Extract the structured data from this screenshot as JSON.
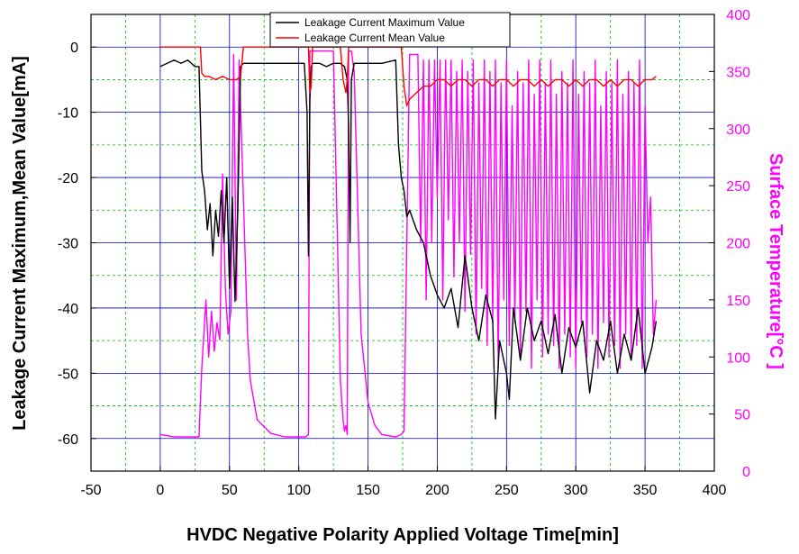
{
  "chart_data": {
    "type": "line",
    "xlabel": "HVDC Negative Polarity Applied Voltage Time[min]",
    "ylabel": "Leakage Current Maximum,Mean Value[mA]",
    "y2label": "Surface Temperature[°C ]",
    "xlim": [
      -50,
      400
    ],
    "ylim": [
      -65,
      5
    ],
    "y2lim": [
      0,
      400
    ],
    "xticks": [
      -50,
      0,
      50,
      100,
      150,
      200,
      250,
      300,
      350,
      400
    ],
    "yticks": [
      0,
      -10,
      -20,
      -30,
      -40,
      -50,
      -60
    ],
    "y2ticks": [
      0,
      50,
      100,
      150,
      200,
      250,
      300,
      350,
      400
    ],
    "grid": true,
    "legend_position": "top-center",
    "colors": {
      "max": "#000000",
      "mean": "#ff0000",
      "temp": "#ff00ff",
      "grid_major": "#0000cc",
      "grid_minor": "#00bb00"
    },
    "series": [
      {
        "name": "Leakage Current Maximum Value",
        "axis": "left",
        "x": [
          0,
          5,
          10,
          15,
          20,
          25,
          28,
          30,
          32,
          34,
          36,
          38,
          40,
          42,
          44,
          46,
          48,
          50,
          52,
          54,
          56,
          58,
          60,
          62,
          70,
          80,
          90,
          100,
          104,
          106,
          107,
          108,
          109,
          110,
          115,
          120,
          125,
          130,
          133,
          135,
          136,
          137,
          138,
          140,
          150,
          160,
          170,
          172,
          174,
          176,
          178,
          180,
          185,
          190,
          195,
          200,
          205,
          210,
          215,
          220,
          225,
          230,
          235,
          240,
          242,
          245,
          250,
          252,
          255,
          260,
          265,
          270,
          275,
          280,
          285,
          290,
          295,
          300,
          305,
          310,
          315,
          320,
          325,
          330,
          335,
          340,
          345,
          350,
          355,
          358
        ],
        "y": [
          -3,
          -2.5,
          -2,
          -2.5,
          -2,
          -3,
          -3,
          -19,
          -22,
          -28,
          -24,
          -32,
          -25,
          -29,
          -22,
          -30,
          -20,
          -37,
          -23,
          -39,
          -25,
          -3,
          -2.5,
          -2.5,
          -2.5,
          -2.5,
          -2.5,
          -2.5,
          -2.5,
          -10,
          -32,
          -8,
          -3,
          -2.5,
          -2.5,
          -3,
          -2.5,
          -2.5,
          -3,
          -5,
          -12,
          -30,
          -5,
          -2.5,
          -2.5,
          -2.5,
          -2,
          -15,
          -20,
          -22,
          -26,
          -25,
          -28,
          -30,
          -35,
          -38,
          -40,
          -37,
          -43,
          -32,
          -40,
          -45,
          -38,
          -42,
          -57,
          -45,
          -50,
          -54,
          -40,
          -48,
          -40,
          -45,
          -42,
          -47,
          -41,
          -50,
          -43,
          -46,
          -42,
          -53,
          -45,
          -48,
          -42,
          -50,
          -44,
          -48,
          -40,
          -50,
          -46,
          -42
        ]
      },
      {
        "name": "Leakage Current Mean Value",
        "axis": "left",
        "x": [
          0,
          5,
          10,
          15,
          20,
          25,
          29,
          30,
          32,
          35,
          40,
          45,
          50,
          55,
          58,
          60,
          70,
          80,
          90,
          100,
          105,
          107,
          108,
          109,
          110,
          120,
          130,
          132,
          134,
          135,
          136,
          138,
          140,
          150,
          160,
          170,
          174,
          176,
          178,
          180,
          185,
          190,
          195,
          200,
          205,
          210,
          215,
          220,
          225,
          230,
          235,
          240,
          245,
          250,
          255,
          260,
          265,
          270,
          275,
          280,
          285,
          290,
          295,
          300,
          305,
          310,
          315,
          320,
          325,
          330,
          335,
          340,
          345,
          350,
          355,
          358
        ],
        "y": [
          0,
          0,
          0,
          0,
          0,
          0,
          0,
          -4,
          -4.5,
          -4.5,
          -5,
          -4.5,
          -5,
          -5,
          -4.5,
          0,
          0,
          0,
          0,
          0,
          0,
          0,
          -7,
          -6,
          0,
          0,
          0,
          -5,
          -7,
          -5,
          0,
          0,
          0,
          0,
          0,
          0,
          0,
          -6,
          -9,
          -8,
          -7,
          -6,
          -6,
          -5,
          -5,
          -6,
          -5,
          -5,
          -6,
          -5,
          -5,
          -6,
          -5,
          -5,
          -6,
          -5,
          -5,
          -6,
          -5,
          -6,
          -5,
          -5,
          -6,
          -5,
          -6,
          -5,
          -5,
          -6,
          -5,
          -6,
          -5,
          -5,
          -6,
          -5,
          -5,
          -4.5
        ]
      },
      {
        "name": "Surface Temperature",
        "axis": "right",
        "x": [
          0,
          10,
          20,
          28,
          30,
          33,
          35,
          37,
          39,
          41,
          43,
          45,
          47,
          49,
          51,
          53,
          55,
          57,
          59,
          61,
          63,
          65,
          70,
          80,
          90,
          100,
          105,
          107,
          108,
          110,
          120,
          125,
          128,
          130,
          132,
          133,
          134,
          135,
          136,
          138,
          140,
          145,
          150,
          155,
          160,
          170,
          174,
          176,
          180,
          184,
          186,
          188,
          190,
          192,
          194,
          196,
          198,
          200,
          202,
          204,
          206,
          208,
          210,
          212,
          214,
          216,
          218,
          220,
          222,
          224,
          226,
          228,
          230,
          232,
          234,
          236,
          238,
          240,
          242,
          244,
          246,
          248,
          250,
          252,
          254,
          256,
          258,
          260,
          262,
          264,
          266,
          268,
          270,
          272,
          274,
          276,
          278,
          280,
          282,
          284,
          286,
          288,
          290,
          292,
          294,
          296,
          298,
          300,
          302,
          304,
          306,
          308,
          310,
          312,
          314,
          316,
          318,
          320,
          322,
          324,
          326,
          328,
          330,
          332,
          334,
          336,
          338,
          340,
          342,
          344,
          346,
          348,
          350,
          352,
          354,
          356,
          358
        ],
        "y": [
          32,
          30,
          30,
          30,
          90,
          150,
          100,
          140,
          105,
          130,
          115,
          260,
          160,
          120,
          140,
          365,
          150,
          360,
          280,
          200,
          120,
          80,
          45,
          33,
          30,
          30,
          30,
          32,
          368,
          368,
          368,
          368,
          200,
          80,
          45,
          35,
          40,
          32,
          368,
          368,
          350,
          120,
          60,
          40,
          32,
          30,
          32,
          35,
          365,
          365,
          365,
          200,
          360,
          150,
          360,
          200,
          360,
          240,
          360,
          150,
          360,
          220,
          360,
          170,
          350,
          200,
          360,
          140,
          350,
          190,
          360,
          120,
          340,
          160,
          360,
          110,
          350,
          130,
          360,
          90,
          340,
          150,
          360,
          110,
          320,
          130,
          350,
          100,
          340,
          140,
          360,
          90,
          330,
          150,
          360,
          100,
          340,
          120,
          360,
          110,
          330,
          90,
          350,
          120,
          340,
          100,
          360,
          90,
          330,
          130,
          350,
          100,
          340,
          120,
          360,
          90,
          320,
          130,
          350,
          100,
          340,
          110,
          360,
          90,
          330,
          120,
          350,
          100,
          340,
          110,
          360,
          90,
          320,
          200,
          240,
          120,
          150
        ]
      }
    ]
  }
}
